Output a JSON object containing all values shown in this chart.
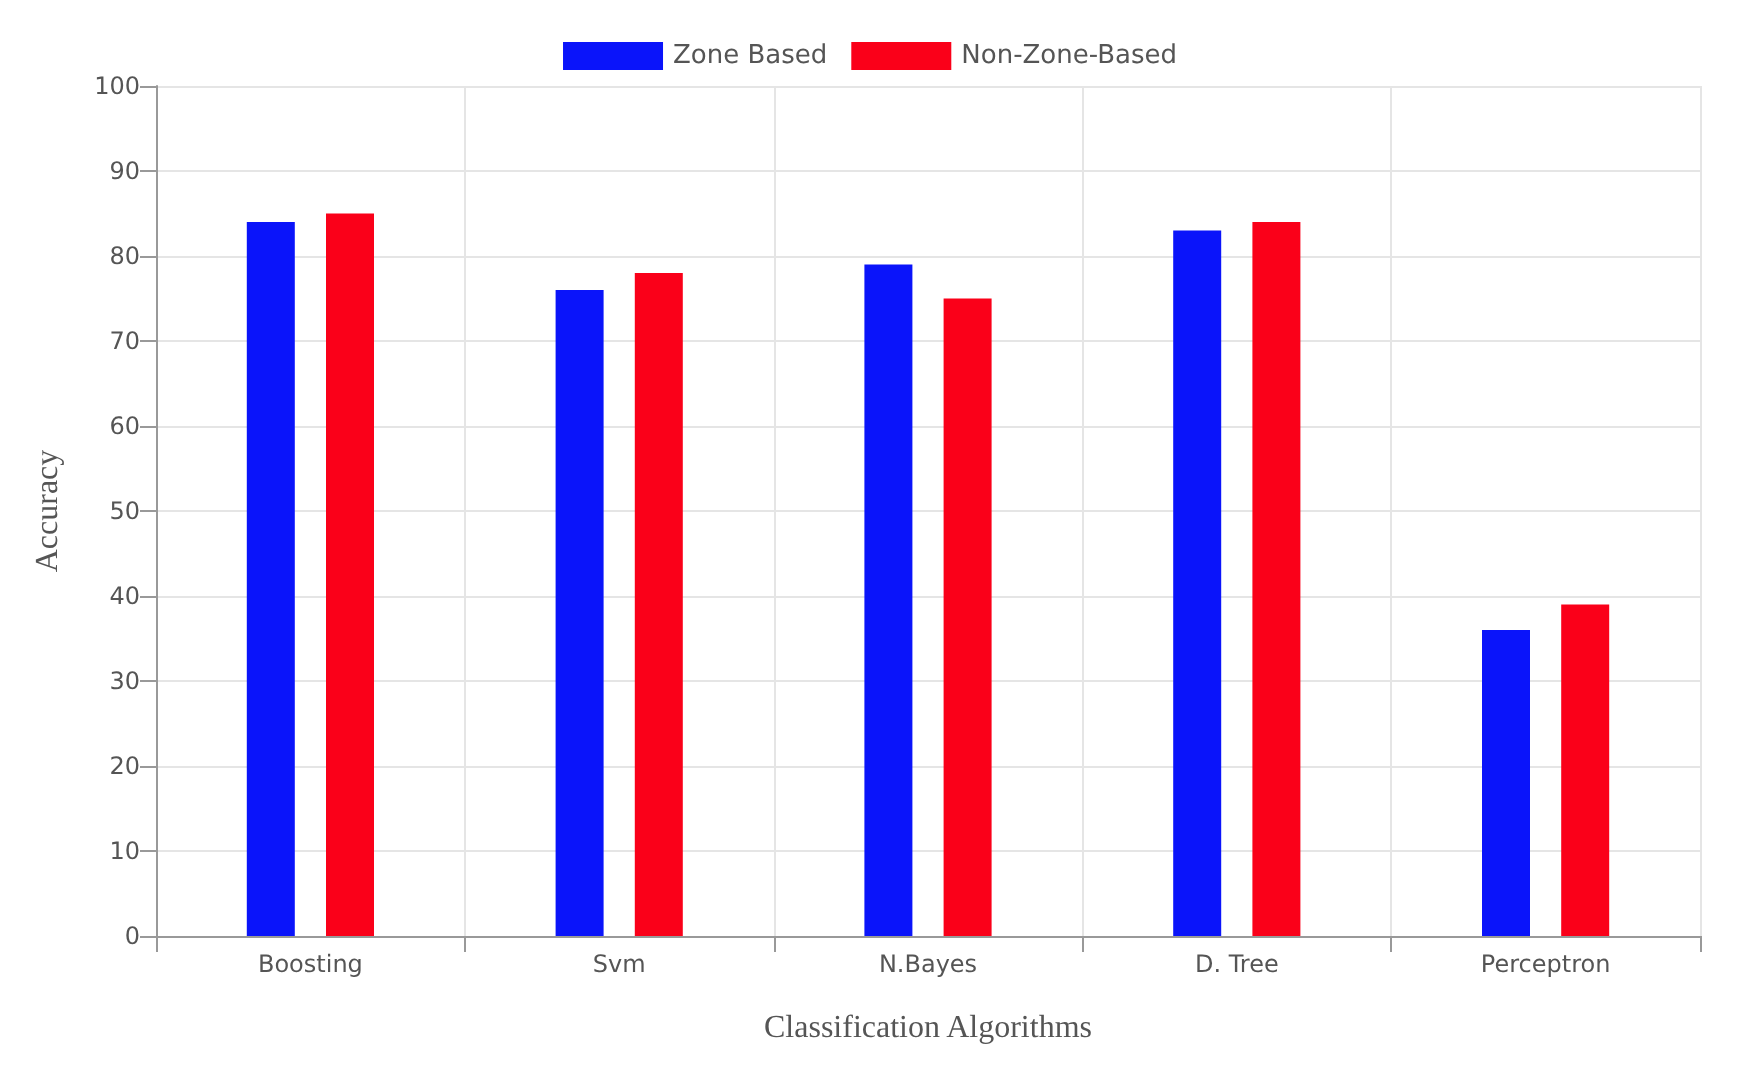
{
  "chart_data": {
    "type": "bar",
    "xlabel": "Classification Algorithms",
    "ylabel": "Accuracy",
    "categories": [
      "Boosting",
      "Svm",
      "N.Bayes",
      "D. Tree",
      "Perceptron"
    ],
    "series": [
      {
        "name": "Zone Based",
        "color": "#0a14fa",
        "values": [
          84,
          76,
          79,
          83,
          36
        ]
      },
      {
        "name": "Non-Zone-Based",
        "color": "#fa0019",
        "values": [
          85,
          78,
          75,
          84,
          39
        ]
      }
    ],
    "ylim": [
      0,
      100
    ],
    "yticks": [
      0,
      10,
      20,
      30,
      40,
      50,
      60,
      70,
      80,
      90,
      100
    ],
    "grid": true,
    "legend": "top"
  }
}
